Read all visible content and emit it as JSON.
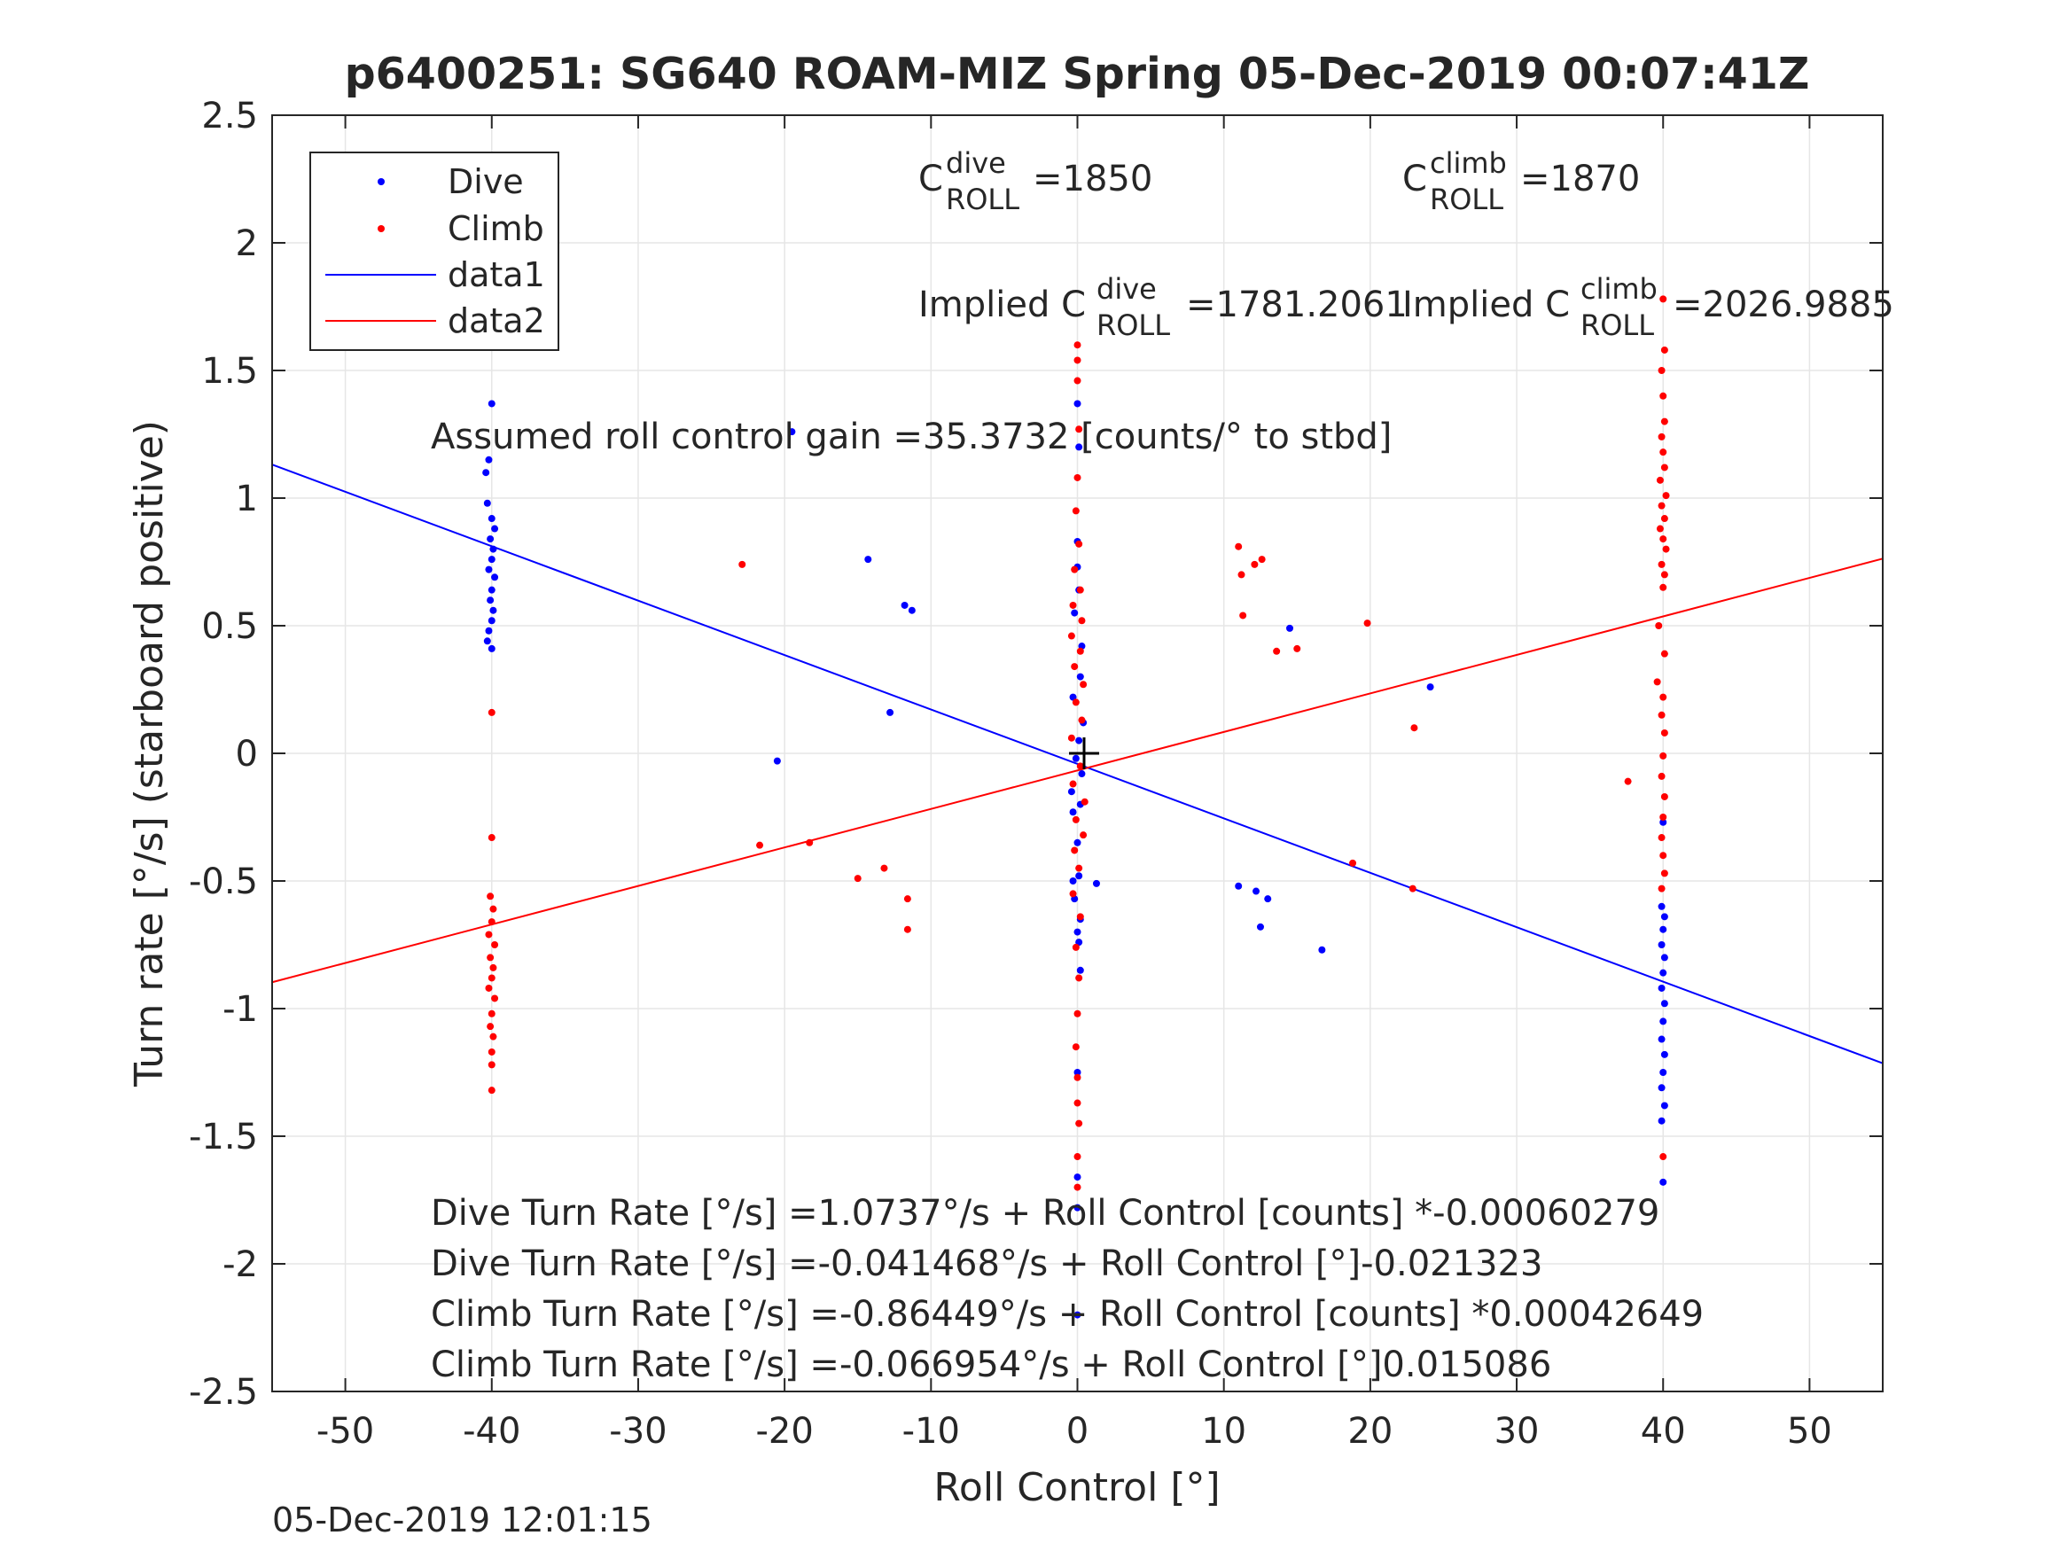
{
  "chart_data": {
    "type": "scatter",
    "title": "p6400251: SG640 ROAM-MIZ Spring 05-Dec-2019 00:07:41Z",
    "xlabel": "Roll Control [°]",
    "ylabel": "Turn rate [°/s] (starboard positive)",
    "xlim": [
      -55,
      55
    ],
    "ylim": [
      -2.5,
      2.5
    ],
    "xticks": [
      -50,
      -40,
      -30,
      -20,
      -10,
      0,
      10,
      20,
      30,
      40,
      50
    ],
    "yticks": [
      -2.5,
      -2,
      -1.5,
      -1,
      -0.5,
      0,
      0.5,
      1,
      1.5,
      2,
      2.5
    ],
    "xtick_labels": [
      "-50",
      "-40",
      "-30",
      "-20",
      "-10",
      "0",
      "10",
      "20",
      "30",
      "40",
      "50"
    ],
    "ytick_labels": [
      "-2.5",
      "-2",
      "-1.5",
      "-1",
      "-0.5",
      "0",
      "0.5",
      "1",
      "1.5",
      "2",
      "2.5"
    ],
    "grid": true,
    "legend_position": "top-left",
    "legend": [
      {
        "label": "Dive",
        "kind": "marker",
        "color": "#0000ff"
      },
      {
        "label": "Climb",
        "kind": "marker",
        "color": "#ff0000"
      },
      {
        "label": "data1",
        "kind": "line",
        "color": "#0000ff"
      },
      {
        "label": "data2",
        "kind": "line",
        "color": "#ff0000"
      }
    ],
    "series": [
      {
        "name": "Dive",
        "kind": "scatter",
        "color": "#0000ff",
        "points": [
          [
            -40,
            1.37
          ],
          [
            -40.2,
            1.15
          ],
          [
            -40.4,
            1.1
          ],
          [
            -40.3,
            0.98
          ],
          [
            -40,
            0.92
          ],
          [
            -39.8,
            0.88
          ],
          [
            -40.1,
            0.84
          ],
          [
            -39.9,
            0.8
          ],
          [
            -40,
            0.76
          ],
          [
            -40.2,
            0.72
          ],
          [
            -39.8,
            0.69
          ],
          [
            -40,
            0.64
          ],
          [
            -40.1,
            0.6
          ],
          [
            -39.9,
            0.56
          ],
          [
            -40,
            0.52
          ],
          [
            -40.2,
            0.48
          ],
          [
            -40,
            0.41
          ],
          [
            -40.3,
            0.44
          ],
          [
            -19.5,
            1.26
          ],
          [
            -14.3,
            0.76
          ],
          [
            -11.8,
            0.58
          ],
          [
            -11.3,
            0.56
          ],
          [
            -12.8,
            0.16
          ],
          [
            -20.5,
            -0.03
          ],
          [
            0,
            1.37
          ],
          [
            0.1,
            1.2
          ],
          [
            0,
            0.83
          ],
          [
            0,
            0.73
          ],
          [
            0.1,
            0.64
          ],
          [
            -0.2,
            0.55
          ],
          [
            0.3,
            0.42
          ],
          [
            0.2,
            0.3
          ],
          [
            -0.3,
            0.22
          ],
          [
            0.4,
            0.12
          ],
          [
            0.1,
            0.05
          ],
          [
            -0.1,
            -0.02
          ],
          [
            0.3,
            -0.08
          ],
          [
            -0.4,
            -0.15
          ],
          [
            0.2,
            -0.2
          ],
          [
            -0.3,
            -0.23
          ],
          [
            0,
            -0.35
          ],
          [
            0.1,
            -0.48
          ],
          [
            -0.2,
            -0.57
          ],
          [
            0.2,
            -0.65
          ],
          [
            0,
            -0.7
          ],
          [
            0.1,
            -0.74
          ],
          [
            -0.3,
            -0.5
          ],
          [
            0.2,
            -0.85
          ],
          [
            0,
            -1.25
          ],
          [
            0,
            -1.66
          ],
          [
            0,
            -1.78
          ],
          [
            0,
            -2.2
          ],
          [
            1.3,
            -0.51
          ],
          [
            11,
            -0.52
          ],
          [
            12.2,
            -0.54
          ],
          [
            13,
            -0.57
          ],
          [
            12.5,
            -0.68
          ],
          [
            16.7,
            -0.77
          ],
          [
            14.5,
            0.49
          ],
          [
            24.1,
            0.26
          ],
          [
            40,
            -1.68
          ],
          [
            39.9,
            -1.44
          ],
          [
            40.1,
            -1.38
          ],
          [
            39.9,
            -1.31
          ],
          [
            40,
            -1.25
          ],
          [
            40.1,
            -1.18
          ],
          [
            39.9,
            -1.12
          ],
          [
            40,
            -1.05
          ],
          [
            40.1,
            -0.98
          ],
          [
            39.9,
            -0.92
          ],
          [
            40,
            -0.86
          ],
          [
            40.1,
            -0.8
          ],
          [
            39.9,
            -0.75
          ],
          [
            40,
            -0.69
          ],
          [
            40.1,
            -0.64
          ],
          [
            39.9,
            -0.6
          ],
          [
            40,
            -0.27
          ]
        ]
      },
      {
        "name": "Climb",
        "kind": "scatter",
        "color": "#ff0000",
        "points": [
          [
            -40,
            0.16
          ],
          [
            -40,
            -0.33
          ],
          [
            -40.1,
            -0.56
          ],
          [
            -39.9,
            -0.61
          ],
          [
            -40,
            -0.66
          ],
          [
            -40.2,
            -0.71
          ],
          [
            -39.8,
            -0.75
          ],
          [
            -40.1,
            -0.8
          ],
          [
            -39.9,
            -0.84
          ],
          [
            -40,
            -0.88
          ],
          [
            -40.2,
            -0.92
          ],
          [
            -39.8,
            -0.96
          ],
          [
            -40,
            -1.02
          ],
          [
            -40.1,
            -1.07
          ],
          [
            -39.9,
            -1.11
          ],
          [
            -40,
            -1.17
          ],
          [
            -40,
            -1.22
          ],
          [
            -40,
            -1.32
          ],
          [
            -22.9,
            0.74
          ],
          [
            -21.7,
            -0.36
          ],
          [
            -18.3,
            -0.35
          ],
          [
            -15,
            -0.49
          ],
          [
            -13.2,
            -0.45
          ],
          [
            -11.6,
            -0.69
          ],
          [
            -11.6,
            -0.57
          ],
          [
            0,
            1.6
          ],
          [
            0,
            1.54
          ],
          [
            0,
            1.46
          ],
          [
            0.1,
            1.27
          ],
          [
            0,
            1.08
          ],
          [
            -0.1,
            0.95
          ],
          [
            0.1,
            0.82
          ],
          [
            -0.2,
            0.72
          ],
          [
            0.2,
            0.64
          ],
          [
            -0.3,
            0.58
          ],
          [
            0.3,
            0.52
          ],
          [
            -0.4,
            0.46
          ],
          [
            0.2,
            0.4
          ],
          [
            -0.2,
            0.34
          ],
          [
            0.4,
            0.27
          ],
          [
            -0.1,
            0.2
          ],
          [
            0.3,
            0.13
          ],
          [
            -0.4,
            0.06
          ],
          [
            0.2,
            -0.05
          ],
          [
            -0.3,
            -0.12
          ],
          [
            0.5,
            -0.19
          ],
          [
            -0.1,
            -0.26
          ],
          [
            0.4,
            -0.32
          ],
          [
            -0.2,
            -0.38
          ],
          [
            0.1,
            -0.45
          ],
          [
            -0.3,
            -0.55
          ],
          [
            0.2,
            -0.64
          ],
          [
            -0.1,
            -0.76
          ],
          [
            0.1,
            -0.88
          ],
          [
            0,
            -1.02
          ],
          [
            -0.1,
            -1.15
          ],
          [
            0,
            -1.27
          ],
          [
            0,
            -1.37
          ],
          [
            0.1,
            -1.45
          ],
          [
            0,
            -1.58
          ],
          [
            0,
            -1.7
          ],
          [
            11,
            0.81
          ],
          [
            11.2,
            0.7
          ],
          [
            12.1,
            0.74
          ],
          [
            12.6,
            0.76
          ],
          [
            11.3,
            0.54
          ],
          [
            13.6,
            0.4
          ],
          [
            15,
            0.41
          ],
          [
            19.8,
            0.51
          ],
          [
            18.8,
            -0.43
          ],
          [
            23,
            0.1
          ],
          [
            22.9,
            -0.53
          ],
          [
            37.6,
            -0.11
          ],
          [
            40,
            1.78
          ],
          [
            40.1,
            1.58
          ],
          [
            39.9,
            1.5
          ],
          [
            40,
            1.4
          ],
          [
            40.1,
            1.3
          ],
          [
            39.9,
            1.24
          ],
          [
            40,
            1.18
          ],
          [
            40.1,
            1.12
          ],
          [
            39.8,
            1.07
          ],
          [
            40.2,
            1.01
          ],
          [
            39.9,
            0.97
          ],
          [
            40.1,
            0.92
          ],
          [
            39.8,
            0.88
          ],
          [
            40,
            0.84
          ],
          [
            40.2,
            0.8
          ],
          [
            39.9,
            0.74
          ],
          [
            40.1,
            0.7
          ],
          [
            40,
            0.65
          ],
          [
            39.7,
            0.5
          ],
          [
            40.1,
            0.39
          ],
          [
            39.6,
            0.28
          ],
          [
            40,
            0.22
          ],
          [
            39.9,
            0.15
          ],
          [
            40.1,
            0.08
          ],
          [
            40,
            -0.01
          ],
          [
            39.9,
            -0.09
          ],
          [
            40.1,
            -0.17
          ],
          [
            40,
            -0.25
          ],
          [
            39.9,
            -0.33
          ],
          [
            40,
            -0.4
          ],
          [
            40.1,
            -0.47
          ],
          [
            39.9,
            -0.53
          ],
          [
            40,
            -1.58
          ]
        ]
      },
      {
        "name": "data1",
        "kind": "line",
        "color": "#0000ff",
        "slope": -0.021323,
        "intercept": -0.041468,
        "x": [
          -55,
          55
        ]
      },
      {
        "name": "data2",
        "kind": "line",
        "color": "#ff0000",
        "slope": 0.015086,
        "intercept": -0.066954,
        "x": [
          -55,
          55
        ]
      }
    ],
    "annotations": {
      "c_dive_main": "C",
      "c_dive_sup": "dive",
      "c_dive_sub": "ROLL",
      "c_dive_val": "=1850",
      "c_climb_main": "C",
      "c_climb_sup": "climb",
      "c_climb_sub": "ROLL",
      "c_climb_val": "=1870",
      "impl_dive_main": "Implied C",
      "impl_dive_sup": "dive",
      "impl_dive_sub": "ROLL",
      "impl_dive_val": "=1781.2061",
      "impl_climb_main": "Implied C",
      "impl_climb_sup": "climb",
      "impl_climb_sub": "ROLL",
      "impl_climb_val": "=2026.9885",
      "gain": "Assumed roll control gain =35.3732 [counts/° to stbd]",
      "eq1": "Dive Turn Rate [°/s] =1.0737°/s + Roll Control [counts] *-0.00060279",
      "eq2": "Dive Turn Rate [°/s] =-0.041468°/s + Roll Control [°]-0.021323",
      "eq3": "Climb Turn Rate [°/s] =-0.86449°/s + Roll Control [counts] *0.00042649",
      "eq4": "Climb Turn Rate [°/s] =-0.066954°/s + Roll Control [°]0.015086"
    },
    "timestamp": "05-Dec-2019 12:01:15"
  }
}
